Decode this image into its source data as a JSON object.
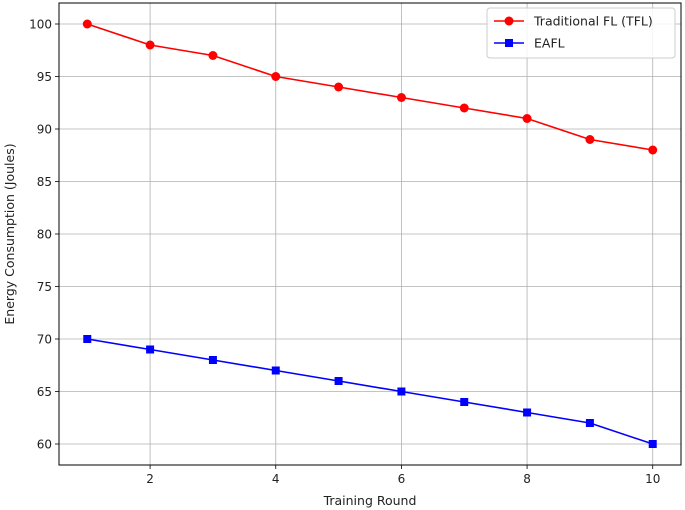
{
  "chart_data": {
    "type": "line",
    "title": "",
    "xlabel": "Training Round",
    "ylabel": "Energy Consumption (Joules)",
    "x": [
      1,
      2,
      3,
      4,
      5,
      6,
      7,
      8,
      9,
      10
    ],
    "xlim": [
      0.55,
      10.45
    ],
    "ylim": [
      58,
      102
    ],
    "xticks": [
      2,
      4,
      6,
      8,
      10
    ],
    "yticks": [
      60,
      65,
      70,
      75,
      80,
      85,
      90,
      95,
      100
    ],
    "grid": true,
    "legend_position": "top-right",
    "series": [
      {
        "name": "Traditional FL (TFL)",
        "color": "#ff0000",
        "marker": "circle",
        "values": [
          100,
          98,
          97,
          95,
          94,
          93,
          92,
          91,
          89,
          88
        ]
      },
      {
        "name": "EAFL",
        "color": "#0000ff",
        "marker": "square",
        "values": [
          70,
          69,
          68,
          67,
          66,
          65,
          64,
          63,
          62,
          60
        ]
      }
    ]
  }
}
